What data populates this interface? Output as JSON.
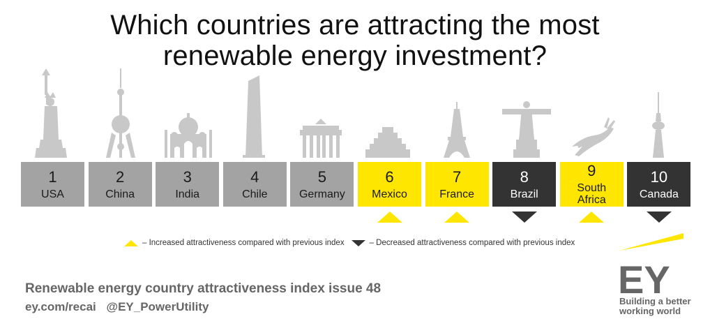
{
  "title_line1": "Which countries are attracting the most",
  "title_line2": "renewable energy investment?",
  "countries": [
    {
      "rank": "1",
      "name": "USA",
      "style": "gray",
      "trend": "none",
      "landmark": "statue-of-liberty-icon"
    },
    {
      "rank": "2",
      "name": "China",
      "style": "gray",
      "trend": "none",
      "landmark": "oriental-pearl-tower-icon"
    },
    {
      "rank": "3",
      "name": "India",
      "style": "gray",
      "trend": "none",
      "landmark": "taj-mahal-icon"
    },
    {
      "rank": "4",
      "name": "Chile",
      "style": "gray",
      "trend": "none",
      "landmark": "skyscraper-icon"
    },
    {
      "rank": "5",
      "name": "Germany",
      "style": "gray",
      "trend": "none",
      "landmark": "brandenburg-gate-icon"
    },
    {
      "rank": "6",
      "name": "Mexico",
      "style": "yellow",
      "trend": "up",
      "landmark": "pyramid-icon"
    },
    {
      "rank": "7",
      "name": "France",
      "style": "yellow",
      "trend": "up",
      "landmark": "eiffel-tower-icon"
    },
    {
      "rank": "8",
      "name": "Brazil",
      "style": "dark",
      "trend": "down",
      "landmark": "christ-redeemer-icon"
    },
    {
      "rank": "9",
      "name": "South Africa",
      "style": "yellow",
      "trend": "up",
      "landmark": "springbok-icon"
    },
    {
      "rank": "10",
      "name": "Canada",
      "style": "dark",
      "trend": "down",
      "landmark": "cn-tower-icon"
    }
  ],
  "legend": {
    "increased": "– Increased attractiveness compared with previous index",
    "decreased": "– Decreased attractiveness compared with previous index"
  },
  "footer": {
    "title": "Renewable energy country attractiveness index issue 48",
    "link1": "ey.com/recai",
    "link2": "@EY_PowerUtility"
  },
  "logo": {
    "text": "EY",
    "tagline_line1": "Building a better",
    "tagline_line2": "working world"
  },
  "colors": {
    "gray": "#a3a3a3",
    "yellow": "#ffe600",
    "dark": "#333333",
    "landmark": "#c8c8c8"
  }
}
